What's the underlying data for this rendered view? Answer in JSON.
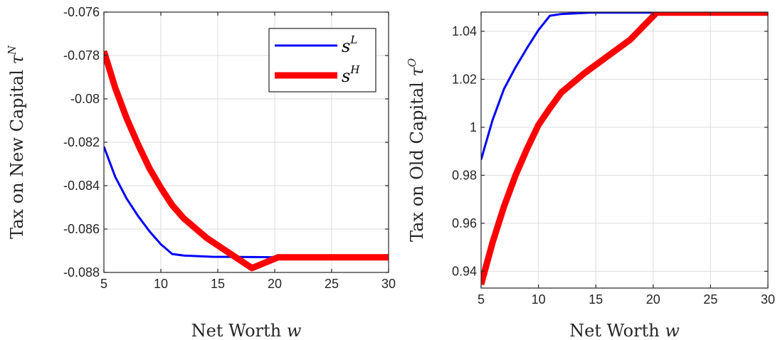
{
  "chart_data": [
    {
      "type": "line",
      "xlabel": "Net Worth",
      "xlabel_symbol": "w",
      "ylabel": "Tax on New Capital",
      "ylabel_symbol": "τ",
      "ylabel_sup": "N",
      "xlim": [
        5,
        30
      ],
      "ylim": [
        -0.088,
        -0.076
      ],
      "xticks": [
        5,
        10,
        15,
        20,
        25,
        30
      ],
      "yticks": [
        -0.088,
        -0.086,
        -0.084,
        -0.082,
        -0.08,
        -0.078,
        -0.076
      ],
      "xtick_labels": [
        "5",
        "10",
        "15",
        "20",
        "25",
        "30"
      ],
      "ytick_labels": [
        "-0.088",
        "-0.086",
        "-0.084",
        "-0.082",
        "-0.08",
        "-0.078",
        "-0.076"
      ],
      "grid": true,
      "legend": {
        "location": "top-right",
        "entries": [
          {
            "symbol": "s",
            "sup": "L",
            "color": "#0000ff"
          },
          {
            "symbol": "s",
            "sup": "H",
            "color": "#ff0000"
          }
        ]
      },
      "series": [
        {
          "color": "#0000ff",
          "width": "thin",
          "x": [
            5,
            6,
            7,
            8,
            9,
            10,
            11,
            12,
            14.5,
            17,
            20.3,
            30
          ],
          "y": [
            -0.0822,
            -0.0836,
            -0.0846,
            -0.0854,
            -0.0861,
            -0.0867,
            -0.08715,
            -0.08722,
            -0.08728,
            -0.08729,
            -0.0873,
            -0.0873
          ]
        },
        {
          "color": "#ff0000",
          "width": "thick",
          "x": [
            5,
            6,
            7,
            8,
            9,
            10,
            11,
            12,
            14,
            16,
            18,
            20.3,
            30
          ],
          "y": [
            -0.0778,
            -0.0795,
            -0.0809,
            -0.0821,
            -0.0832,
            -0.0841,
            -0.0849,
            -0.0855,
            -0.0864,
            -0.0871,
            -0.0878,
            -0.0873,
            -0.0873
          ]
        }
      ]
    },
    {
      "type": "line",
      "xlabel": "Net Worth",
      "xlabel_symbol": "w",
      "ylabel": "Tax on Old Capital",
      "ylabel_symbol": "τ",
      "ylabel_sup": "O",
      "xlim": [
        5,
        30
      ],
      "ylim": [
        0.933,
        1.048
      ],
      "xticks": [
        5,
        10,
        15,
        20,
        25,
        30
      ],
      "yticks": [
        0.94,
        0.96,
        0.98,
        1.0,
        1.02,
        1.04
      ],
      "xtick_labels": [
        "5",
        "10",
        "15",
        "20",
        "25",
        "30"
      ],
      "ytick_labels": [
        "0.94",
        "0.96",
        "0.98",
        "1",
        "1.02",
        "1.04"
      ],
      "grid": true,
      "series": [
        {
          "color": "#0000ff",
          "width": "thin",
          "x": [
            5,
            6,
            7,
            8,
            9,
            10,
            11,
            12,
            14.5,
            17,
            20.3,
            30
          ],
          "y": [
            0.9865,
            1.003,
            1.016,
            1.025,
            1.033,
            1.0405,
            1.0465,
            1.0472,
            1.0478,
            1.0478,
            1.0478,
            1.0478
          ]
        },
        {
          "color": "#ff0000",
          "width": "thick",
          "x": [
            5,
            6,
            7,
            8,
            9,
            10,
            11,
            12,
            14,
            16,
            18,
            20.3,
            30
          ],
          "y": [
            0.9345,
            0.952,
            0.967,
            0.98,
            0.991,
            1.001,
            1.008,
            1.0145,
            1.0225,
            1.0295,
            1.0365,
            1.0478,
            1.0478
          ]
        }
      ]
    }
  ]
}
